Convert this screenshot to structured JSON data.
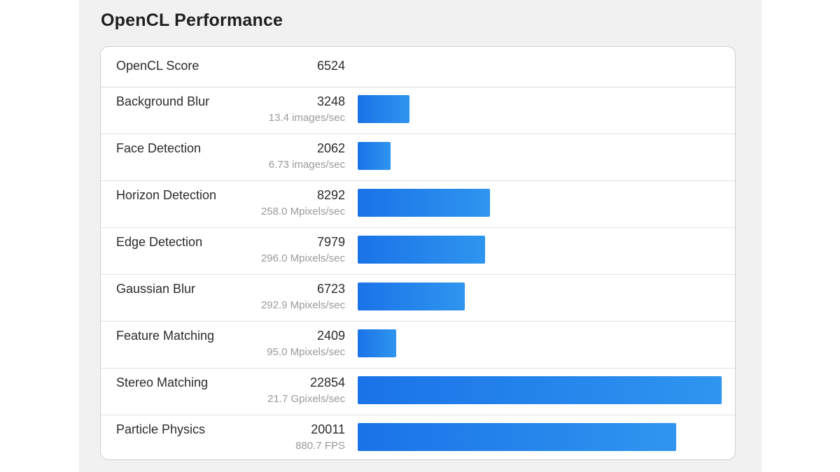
{
  "section_title": "OpenCL Performance",
  "score": {
    "label": "OpenCL Score",
    "value": "6524"
  },
  "colors": {
    "bar_start": "#1a73e8",
    "bar_end": "#2f95ef"
  },
  "chart_data": {
    "type": "bar",
    "orientation": "horizontal",
    "title": "OpenCL Performance",
    "xlim": [
      0,
      22854
    ],
    "categories": [
      "Background Blur",
      "Face Detection",
      "Horizon Detection",
      "Edge Detection",
      "Gaussian Blur",
      "Feature Matching",
      "Stereo Matching",
      "Particle Physics"
    ],
    "values": [
      3248,
      2062,
      8292,
      7979,
      6723,
      2409,
      22854,
      20011
    ],
    "rates": [
      "13.4 images/sec",
      "6.73 images/sec",
      "258.0 Mpixels/sec",
      "296.0 Mpixels/sec",
      "292.9 Mpixels/sec",
      "95.0 Mpixels/sec",
      "21.7 Gpixels/sec",
      "880.7 FPS"
    ]
  }
}
